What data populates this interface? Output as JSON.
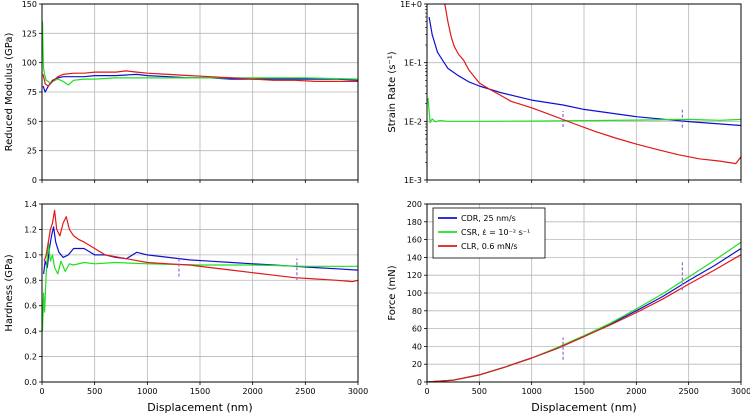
{
  "figure": {
    "xlabel": "Displacement (nm)",
    "legend": [
      {
        "name": "CDR, 25 nm/s",
        "color": "#1010d0"
      },
      {
        "name": "CSR, ε̇ = 10⁻² s⁻¹",
        "color": "#20e020"
      },
      {
        "name": "CLR, 0.6 mN/s",
        "color": "#e01818"
      }
    ],
    "marker_color": "#9966cc",
    "colors": {
      "cdr": "#1010d0",
      "csr": "#20e020",
      "clr": "#e01818",
      "grid": "#b8b8b8"
    }
  },
  "chart_data": [
    {
      "id": "modulus",
      "type": "line",
      "ylabel": "Reduced Modulus (GPa)",
      "xlim": [
        0,
        3000
      ],
      "ylim": [
        0,
        150
      ],
      "x_ticks": [
        "0",
        "500",
        "1000",
        "1500",
        "2000",
        "2500",
        "3000"
      ],
      "y_ticks": [
        "0",
        "25",
        "50",
        "75",
        "100",
        "125",
        "150"
      ],
      "show_xticklabels": false,
      "series": [
        {
          "key": "cdr",
          "x": [
            10,
            30,
            60,
            100,
            150,
            200,
            300,
            400,
            500,
            700,
            900,
            1000,
            1200,
            1400,
            1600,
            1800,
            2000,
            2200,
            2400,
            2600,
            2800,
            3000
          ],
          "y": [
            80,
            75,
            80,
            85,
            87,
            88,
            88,
            88,
            89,
            89,
            90,
            89,
            88,
            87,
            87,
            86,
            86,
            86,
            86,
            86,
            86,
            85
          ]
        },
        {
          "key": "csr",
          "x": [
            5,
            10,
            15,
            25,
            40,
            60,
            80,
            100,
            150,
            200,
            250,
            300,
            400,
            500,
            700,
            1000,
            1500,
            2000,
            2500,
            3000
          ],
          "y": [
            135,
            108,
            95,
            90,
            85,
            84,
            82,
            84,
            86,
            84,
            81,
            85,
            86,
            86,
            87,
            87,
            87,
            87,
            87,
            86
          ]
        },
        {
          "key": "clr",
          "x": [
            10,
            30,
            60,
            100,
            150,
            200,
            300,
            400,
            500,
            600,
            700,
            800,
            900,
            1000,
            1200,
            1400,
            1600,
            1800,
            2000,
            2200,
            2400,
            2600,
            2800,
            3000
          ],
          "y": [
            90,
            82,
            80,
            84,
            88,
            90,
            91,
            91,
            92,
            92,
            92,
            93,
            92,
            91,
            90,
            89,
            88,
            87,
            86,
            85,
            85,
            84,
            84,
            84
          ]
        }
      ],
      "markers": []
    },
    {
      "id": "strainrate",
      "type": "line",
      "ylabel": "Strain Rate (s⁻¹)",
      "scale": "log",
      "xlim": [
        0,
        3000
      ],
      "ylim": [
        0.001,
        1
      ],
      "x_ticks": [
        "0",
        "500",
        "1000",
        "1500",
        "2000",
        "2500",
        "3000"
      ],
      "y_tick_values": [
        0.001,
        0.01,
        0.1,
        1
      ],
      "y_ticks": [
        "1E-3",
        "1E-2",
        "1E-1",
        "1E+0"
      ],
      "show_xticklabels": false,
      "series": [
        {
          "key": "cdr",
          "x": [
            20,
            50,
            100,
            200,
            300,
            400,
            500,
            700,
            1000,
            1300,
            1500,
            2000,
            2500,
            3000
          ],
          "y": [
            0.6,
            0.3,
            0.15,
            0.08,
            0.06,
            0.047,
            0.04,
            0.031,
            0.023,
            0.019,
            0.016,
            0.012,
            0.0099,
            0.0085
          ]
        },
        {
          "key": "csr",
          "x": [
            10,
            20,
            30,
            50,
            80,
            120,
            200,
            500,
            1000,
            1500,
            2000,
            2500,
            2800,
            3000
          ],
          "y": [
            0.025,
            0.015,
            0.0095,
            0.011,
            0.0098,
            0.0103,
            0.01,
            0.01,
            0.0101,
            0.0103,
            0.0105,
            0.0108,
            0.0104,
            0.0108
          ]
        },
        {
          "key": "clr",
          "x": [
            170,
            200,
            230,
            260,
            300,
            350,
            400,
            450,
            500,
            600,
            700,
            800,
            1000,
            1200,
            1400,
            1600,
            1800,
            2000,
            2200,
            2400,
            2600,
            2800,
            2950,
            3000
          ],
          "y": [
            1.0,
            0.5,
            0.28,
            0.19,
            0.14,
            0.11,
            0.075,
            0.058,
            0.045,
            0.035,
            0.028,
            0.022,
            0.017,
            0.0125,
            0.0092,
            0.0068,
            0.0052,
            0.0041,
            0.0033,
            0.0027,
            0.0023,
            0.0021,
            0.0019,
            0.0025
          ]
        }
      ],
      "markers": [
        {
          "x": 1300,
          "y1": 0.008,
          "y2": 0.015
        },
        {
          "x": 2440,
          "y1": 0.0078,
          "y2": 0.016
        }
      ]
    },
    {
      "id": "hardness",
      "type": "line",
      "ylabel": "Hardness (GPa)",
      "xlabel": "Displacement (nm)",
      "xlim": [
        0,
        3000
      ],
      "ylim": [
        0,
        1.4
      ],
      "x_ticks": [
        "0",
        "500",
        "1000",
        "1500",
        "2000",
        "2500",
        "3000"
      ],
      "y_tick_values": [
        0,
        0.2,
        0.4,
        0.6,
        0.8,
        1.0,
        1.2,
        1.4
      ],
      "y_ticks": [
        "0.0",
        "0.2",
        "0.4",
        "0.6",
        "0.8",
        "1.0",
        "1.2",
        "1.4"
      ],
      "show_xticklabels": true,
      "series": [
        {
          "key": "cdr",
          "x": [
            15,
            30,
            50,
            70,
            90,
            110,
            130,
            160,
            200,
            250,
            300,
            400,
            500,
            600,
            700,
            800,
            900,
            1000,
            1200,
            1400,
            1600,
            1800,
            2000,
            2200,
            2400,
            2600,
            2800,
            3000
          ],
          "y": [
            0.85,
            0.95,
            0.9,
            1.05,
            1.15,
            1.22,
            1.1,
            1.02,
            0.98,
            1.0,
            1.05,
            1.05,
            1.0,
            1.0,
            0.98,
            0.97,
            1.02,
            1.0,
            0.98,
            0.96,
            0.95,
            0.94,
            0.93,
            0.92,
            0.91,
            0.9,
            0.89,
            0.88
          ]
        },
        {
          "key": "csr",
          "x": [
            5,
            15,
            25,
            40,
            60,
            80,
            100,
            120,
            150,
            180,
            220,
            260,
            300,
            400,
            500,
            700,
            1000,
            1500,
            2000,
            2500,
            3000
          ],
          "y": [
            0.4,
            0.7,
            0.55,
            0.85,
            1.1,
            0.95,
            1.0,
            0.9,
            0.85,
            0.95,
            0.87,
            0.93,
            0.92,
            0.94,
            0.93,
            0.94,
            0.93,
            0.92,
            0.92,
            0.91,
            0.91
          ]
        },
        {
          "key": "clr",
          "x": [
            20,
            40,
            60,
            80,
            100,
            120,
            140,
            170,
            200,
            230,
            260,
            300,
            350,
            400,
            500,
            600,
            800,
            1000,
            1200,
            1400,
            1600,
            1800,
            2000,
            2200,
            2400,
            2600,
            2800,
            2950,
            3000
          ],
          "y": [
            0.95,
            1.0,
            1.1,
            1.2,
            1.25,
            1.35,
            1.2,
            1.15,
            1.25,
            1.3,
            1.2,
            1.15,
            1.12,
            1.1,
            1.05,
            1.0,
            0.97,
            0.94,
            0.93,
            0.92,
            0.9,
            0.88,
            0.86,
            0.84,
            0.82,
            0.81,
            0.8,
            0.79,
            0.8
          ]
        }
      ],
      "markers": [
        {
          "x": 1300,
          "y1": 0.83,
          "y2": 0.99
        },
        {
          "x": 2420,
          "y1": 0.8,
          "y2": 0.97
        }
      ]
    },
    {
      "id": "force",
      "type": "line",
      "ylabel": "Force (mN)",
      "xlabel": "Displacement (nm)",
      "xlim": [
        0,
        3000
      ],
      "ylim": [
        0,
        200
      ],
      "x_ticks": [
        "0",
        "500",
        "1000",
        "1500",
        "2000",
        "2500",
        "3000"
      ],
      "y_ticks": [
        "0",
        "20",
        "40",
        "60",
        "80",
        "100",
        "120",
        "140",
        "160",
        "180",
        "200"
      ],
      "show_xticklabels": true,
      "legend_position": "top-left",
      "series": [
        {
          "key": "cdr",
          "x": [
            0,
            250,
            500,
            750,
            1000,
            1250,
            1500,
            1750,
            2000,
            2250,
            2500,
            2750,
            3000
          ],
          "y": [
            0,
            2,
            8,
            17,
            27,
            38,
            51,
            65,
            80,
            96,
            114,
            131,
            150
          ]
        },
        {
          "key": "csr",
          "x": [
            0,
            250,
            500,
            750,
            1000,
            1250,
            1500,
            1750,
            2000,
            2250,
            2500,
            2750,
            3000
          ],
          "y": [
            0,
            2,
            8,
            17,
            27,
            39,
            52,
            66,
            82,
            99,
            118,
            137,
            157
          ]
        },
        {
          "key": "clr",
          "x": [
            0,
            250,
            500,
            750,
            1000,
            1250,
            1500,
            1750,
            2000,
            2250,
            2500,
            2750,
            3000
          ],
          "y": [
            0,
            2,
            8,
            17,
            27,
            38,
            51,
            64,
            78,
            93,
            110,
            126,
            143
          ]
        }
      ],
      "markers": [
        {
          "x": 1300,
          "y1": 25,
          "y2": 50
        },
        {
          "x": 2440,
          "y1": 103,
          "y2": 135
        }
      ]
    }
  ]
}
